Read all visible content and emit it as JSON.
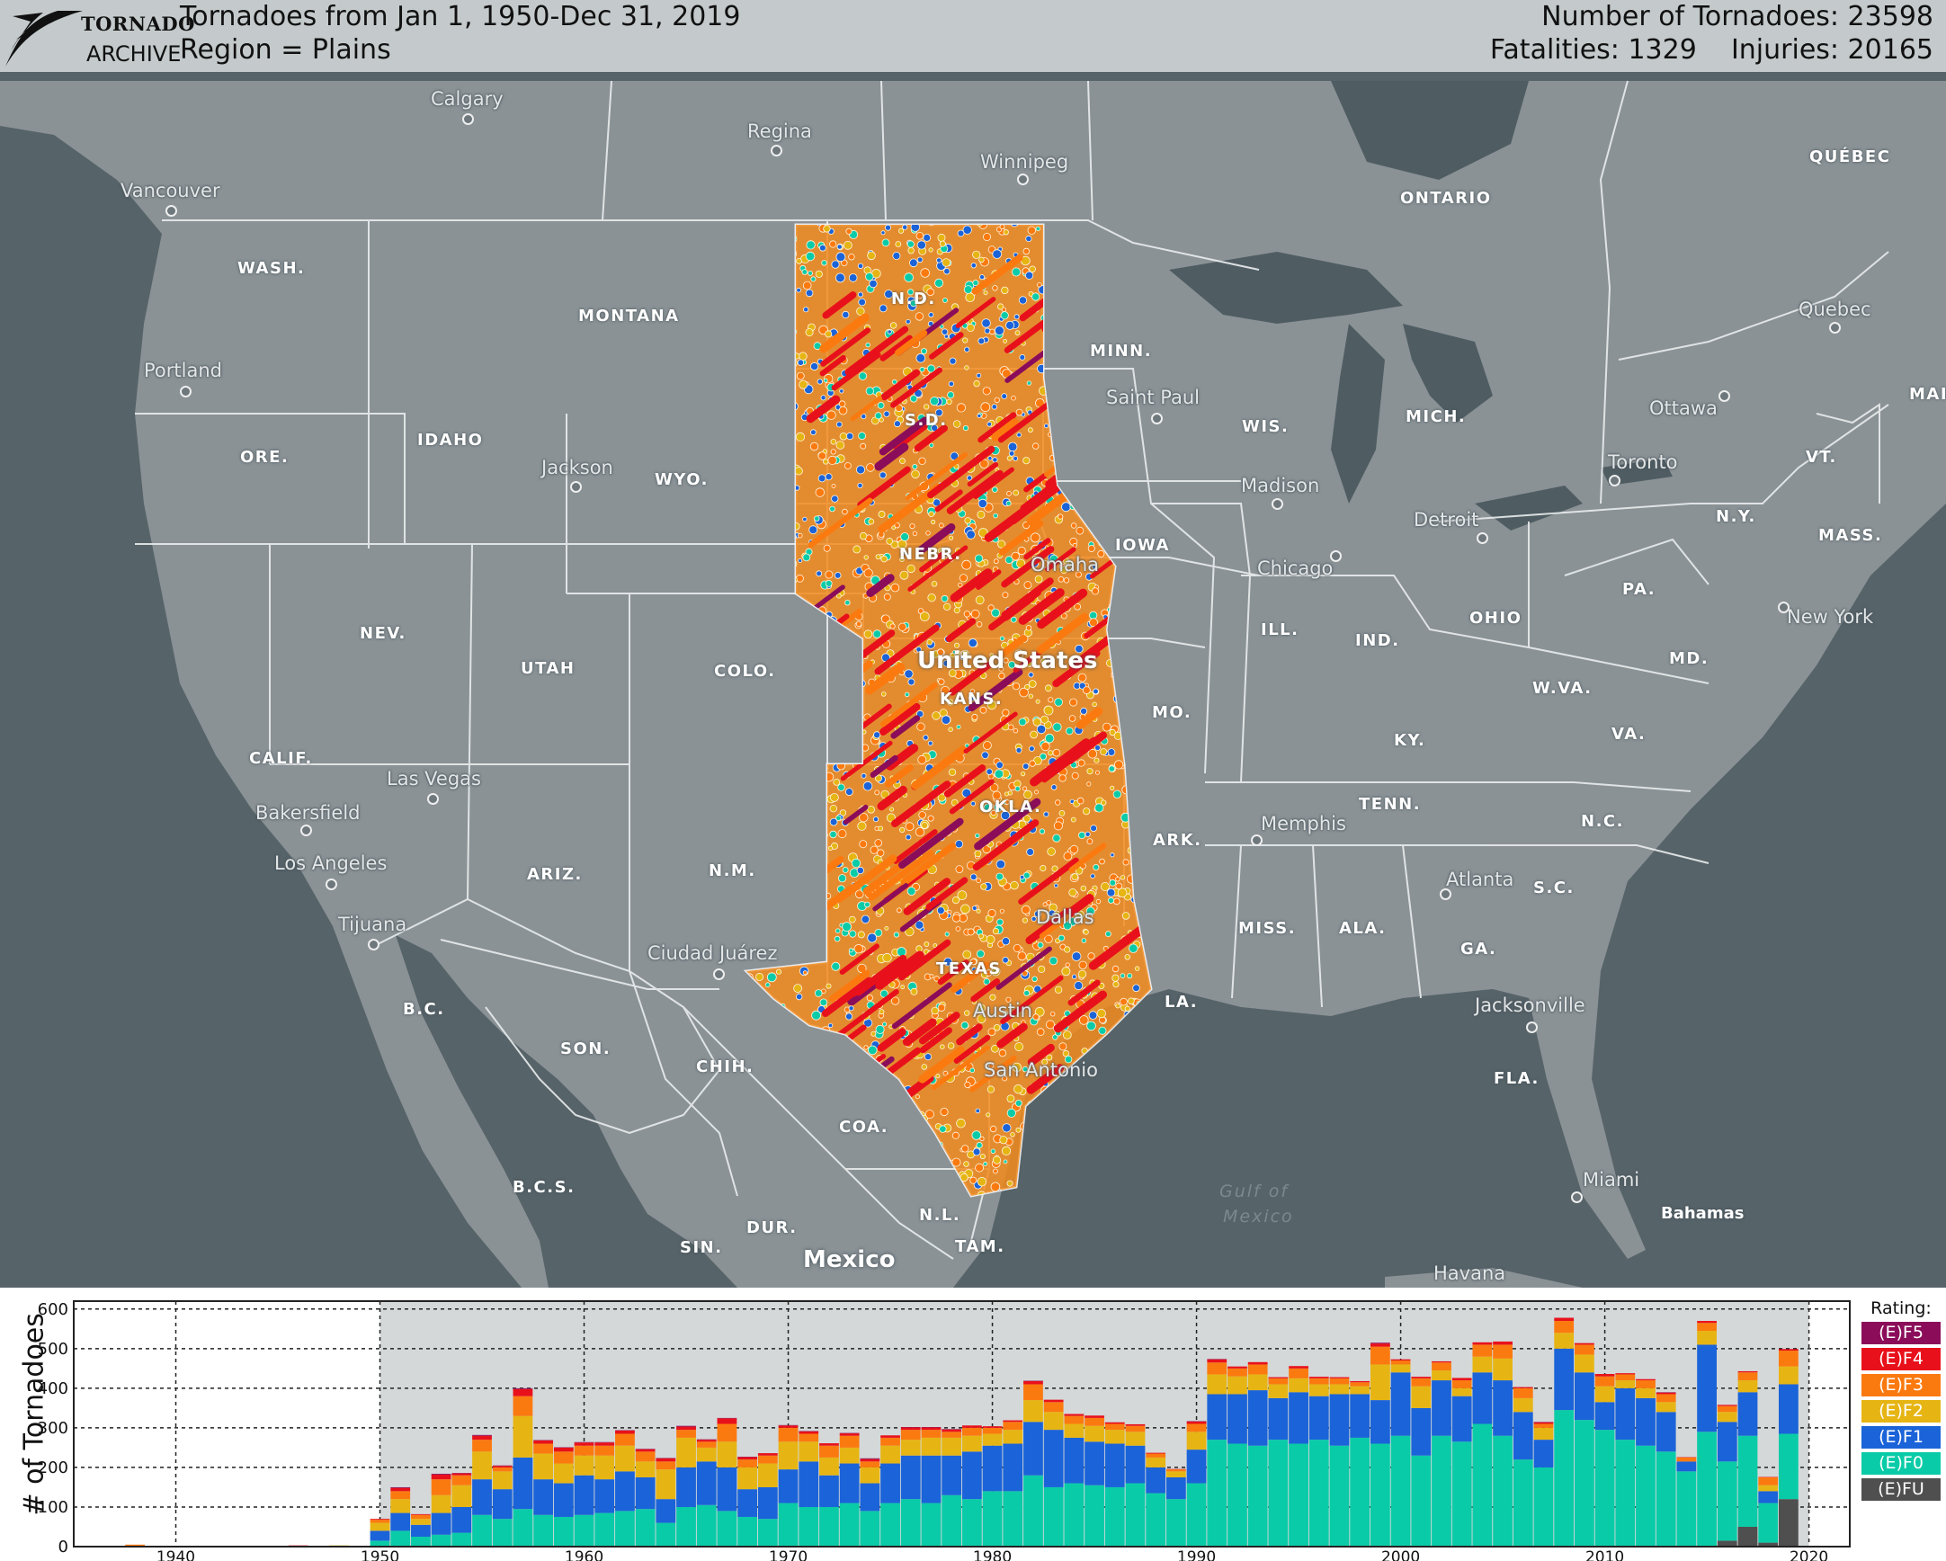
{
  "header": {
    "logo_word1": "TORNADO",
    "logo_word2": "ARCHIVE",
    "title_line1": "Tornadoes from Jan 1, 1950-Dec 31, 2019",
    "title_line2": "Region = Plains",
    "stat_line1": "Number of Tornadoes: 23598",
    "stat_line2": "Fatalities: 1329    Injuries: 20165"
  },
  "map": {
    "background_color": "#566369",
    "land_color": "#8a9296",
    "water_color": "#4f5d63",
    "countries": [
      "United States",
      "Mexico"
    ],
    "cities": [
      "Calgary",
      "Regina",
      "Winnipeg",
      "Vancouver",
      "Portland",
      "Jackson",
      "Saint Paul",
      "Madison",
      "Chicago",
      "Detroit",
      "Toronto",
      "Ottawa",
      "Quebec",
      "New York",
      "Omaha",
      "Las Vegas",
      "Bakersfield",
      "Los Angeles",
      "Tijuana",
      "Ciudad Juárez",
      "Memphis",
      "Atlanta",
      "Dallas",
      "Austin",
      "San Antonio",
      "Jacksonville",
      "Miami",
      "Havana"
    ],
    "states": [
      "WASH.",
      "MONTANA",
      "N.D.",
      "MINN.",
      "ONTARIO",
      "QUÉBEC",
      "ORE.",
      "IDAHO",
      "WYO.",
      "S.D.",
      "WIS.",
      "MICH.",
      "VT.",
      "N.Y.",
      "MASS.",
      "MAI",
      "NEBR.",
      "IOWA",
      "NEV.",
      "UTAH",
      "COLO.",
      "KANS.",
      "MO.",
      "ILL.",
      "IND.",
      "OHIO",
      "PA.",
      "MD.",
      "W.VA.",
      "VA.",
      "KY.",
      "CALIF.",
      "ARIZ.",
      "N.M.",
      "OKLA.",
      "ARK.",
      "TENN.",
      "N.C.",
      "S.C.",
      "MISS.",
      "ALA.",
      "GA.",
      "TEXAS",
      "LA.",
      "FLA.",
      "B.C.",
      "SON.",
      "CHIH.",
      "COA.",
      "B.C.S.",
      "DUR.",
      "N.L.",
      "SIN.",
      "TAM.",
      "Bahamas"
    ],
    "water_bodies": [
      "Gulf of",
      "Mexico"
    ]
  },
  "chart": {
    "ylabel": "# of Tornadoes",
    "y_ticks": [
      "0",
      "100",
      "200",
      "300",
      "400",
      "500",
      "600"
    ],
    "x_ticks": [
      "1940",
      "1950",
      "1960",
      "1970",
      "1980",
      "1990",
      "2000",
      "2010",
      "2020"
    ]
  },
  "legend": {
    "title": "Rating:",
    "items": [
      {
        "label": "(E)F5",
        "color": "#8b0d5a"
      },
      {
        "label": "(E)F4",
        "color": "#e8111b"
      },
      {
        "label": "(E)F3",
        "color": "#fb7a10"
      },
      {
        "label": "(E)F2",
        "color": "#e6b514"
      },
      {
        "label": "(E)F1",
        "color": "#1b63d8"
      },
      {
        "label": "(E)F0",
        "color": "#0acba8"
      },
      {
        "label": "(E)FU",
        "color": "#4f4f4f"
      }
    ]
  },
  "chart_data": {
    "type": "bar",
    "stacked": true,
    "xlim": [
      1935,
      2022
    ],
    "ylim": [
      0,
      620
    ],
    "grid": true,
    "legend_position": "right",
    "x": [
      1938,
      1943,
      1946,
      1947,
      1948,
      1949,
      1950,
      1951,
      1952,
      1953,
      1954,
      1955,
      1956,
      1957,
      1958,
      1959,
      1960,
      1961,
      1962,
      1963,
      1964,
      1965,
      1966,
      1967,
      1968,
      1969,
      1970,
      1971,
      1972,
      1973,
      1974,
      1975,
      1976,
      1977,
      1978,
      1979,
      1980,
      1981,
      1982,
      1983,
      1984,
      1985,
      1986,
      1987,
      1988,
      1989,
      1990,
      1991,
      1992,
      1993,
      1994,
      1995,
      1996,
      1997,
      1998,
      1999,
      2000,
      2001,
      2002,
      2003,
      2004,
      2005,
      2006,
      2007,
      2008,
      2009,
      2010,
      2011,
      2012,
      2013,
      2014,
      2015,
      2016,
      2017,
      2018,
      2019
    ],
    "series": [
      {
        "name": "(E)FU",
        "values": [
          0,
          0,
          0,
          0,
          0,
          0,
          0,
          0,
          0,
          0,
          0,
          0,
          0,
          0,
          0,
          0,
          0,
          0,
          0,
          0,
          0,
          0,
          0,
          0,
          0,
          0,
          0,
          0,
          0,
          0,
          0,
          0,
          0,
          0,
          0,
          0,
          0,
          0,
          0,
          0,
          0,
          0,
          0,
          0,
          0,
          0,
          0,
          0,
          0,
          0,
          0,
          0,
          0,
          0,
          0,
          0,
          0,
          0,
          0,
          0,
          0,
          0,
          0,
          0,
          0,
          0,
          0,
          0,
          0,
          0,
          0,
          0,
          15,
          50,
          10,
          120
        ]
      },
      {
        "name": "(E)F0",
        "values": [
          0,
          0,
          0,
          0,
          0,
          0,
          15,
          40,
          25,
          30,
          35,
          80,
          70,
          95,
          80,
          75,
          80,
          85,
          90,
          95,
          60,
          100,
          105,
          90,
          75,
          70,
          110,
          100,
          100,
          110,
          90,
          110,
          120,
          110,
          130,
          120,
          140,
          140,
          180,
          150,
          160,
          155,
          150,
          160,
          135,
          120,
          160,
          270,
          260,
          255,
          270,
          260,
          270,
          255,
          275,
          260,
          280,
          230,
          280,
          265,
          310,
          280,
          220,
          200,
          345,
          320,
          295,
          270,
          255,
          240,
          190,
          290,
          200,
          230,
          100,
          165
        ]
      },
      {
        "name": "(E)F1",
        "values": [
          0,
          0,
          0,
          0,
          0,
          0,
          25,
          45,
          30,
          55,
          65,
          90,
          75,
          130,
          90,
          85,
          100,
          85,
          100,
          80,
          60,
          100,
          110,
          110,
          70,
          80,
          85,
          115,
          80,
          100,
          70,
          100,
          110,
          120,
          100,
          120,
          115,
          120,
          135,
          145,
          115,
          110,
          110,
          95,
          65,
          55,
          85,
          115,
          125,
          140,
          105,
          130,
          110,
          130,
          110,
          110,
          160,
          120,
          140,
          115,
          130,
          140,
          120,
          70,
          155,
          120,
          70,
          130,
          120,
          100,
          25,
          220,
          100,
          110,
          30,
          125
        ]
      },
      {
        "name": "(E)F2",
        "values": [
          0,
          0,
          0,
          0,
          3,
          0,
          20,
          35,
          15,
          45,
          55,
          70,
          45,
          105,
          65,
          50,
          50,
          60,
          65,
          40,
          75,
          75,
          35,
          65,
          55,
          60,
          70,
          50,
          45,
          40,
          40,
          45,
          40,
          45,
          45,
          40,
          30,
          35,
          55,
          45,
          35,
          40,
          35,
          35,
          25,
          15,
          45,
          50,
          45,
          40,
          35,
          35,
          30,
          25,
          20,
          90,
          20,
          55,
          25,
          20,
          40,
          55,
          35,
          30,
          40,
          45,
          40,
          20,
          25,
          25,
          0,
          35,
          25,
          30,
          15,
          45
        ]
      },
      {
        "name": "(E)F3",
        "values": [
          5,
          2,
          0,
          0,
          0,
          0,
          8,
          20,
          10,
          40,
          25,
          30,
          10,
          50,
          25,
          30,
          25,
          25,
          30,
          25,
          20,
          20,
          15,
          45,
          20,
          20,
          35,
          20,
          30,
          30,
          15,
          20,
          25,
          20,
          15,
          20,
          15,
          20,
          40,
          25,
          20,
          20,
          15,
          15,
          10,
          5,
          20,
          30,
          20,
          25,
          15,
          25,
          15,
          15,
          10,
          45,
          10,
          20,
          20,
          20,
          30,
          35,
          25,
          10,
          30,
          25,
          25,
          15,
          20,
          20,
          10,
          20,
          15,
          20,
          20,
          40
        ]
      },
      {
        "name": "(E)F4",
        "values": [
          0,
          0,
          3,
          2,
          0,
          0,
          2,
          8,
          2,
          12,
          5,
          10,
          4,
          18,
          8,
          10,
          8,
          8,
          8,
          6,
          8,
          8,
          5,
          14,
          6,
          6,
          6,
          6,
          6,
          6,
          6,
          6,
          6,
          6,
          6,
          6,
          4,
          4,
          8,
          6,
          5,
          6,
          4,
          4,
          2,
          1,
          6,
          8,
          5,
          6,
          3,
          6,
          4,
          3,
          3,
          8,
          3,
          4,
          3,
          6,
          6,
          8,
          3,
          4,
          8,
          4,
          6,
          3,
          3,
          4,
          1,
          5,
          3,
          3,
          1,
          4
        ]
      },
      {
        "name": "(E)F5",
        "values": [
          0,
          0,
          0,
          0,
          0,
          0,
          0,
          2,
          0,
          2,
          1,
          2,
          1,
          2,
          1,
          1,
          1,
          1,
          1,
          1,
          1,
          2,
          1,
          1,
          1,
          0,
          1,
          1,
          0,
          1,
          2,
          0,
          1,
          1,
          1,
          0,
          0,
          0,
          1,
          0,
          0,
          0,
          0,
          0,
          0,
          0,
          1,
          1,
          0,
          0,
          0,
          0,
          0,
          0,
          0,
          2,
          0,
          0,
          0,
          0,
          0,
          0,
          0,
          1,
          0,
          0,
          0,
          0,
          0,
          1,
          0,
          0,
          0,
          0,
          0,
          0
        ]
      }
    ]
  }
}
